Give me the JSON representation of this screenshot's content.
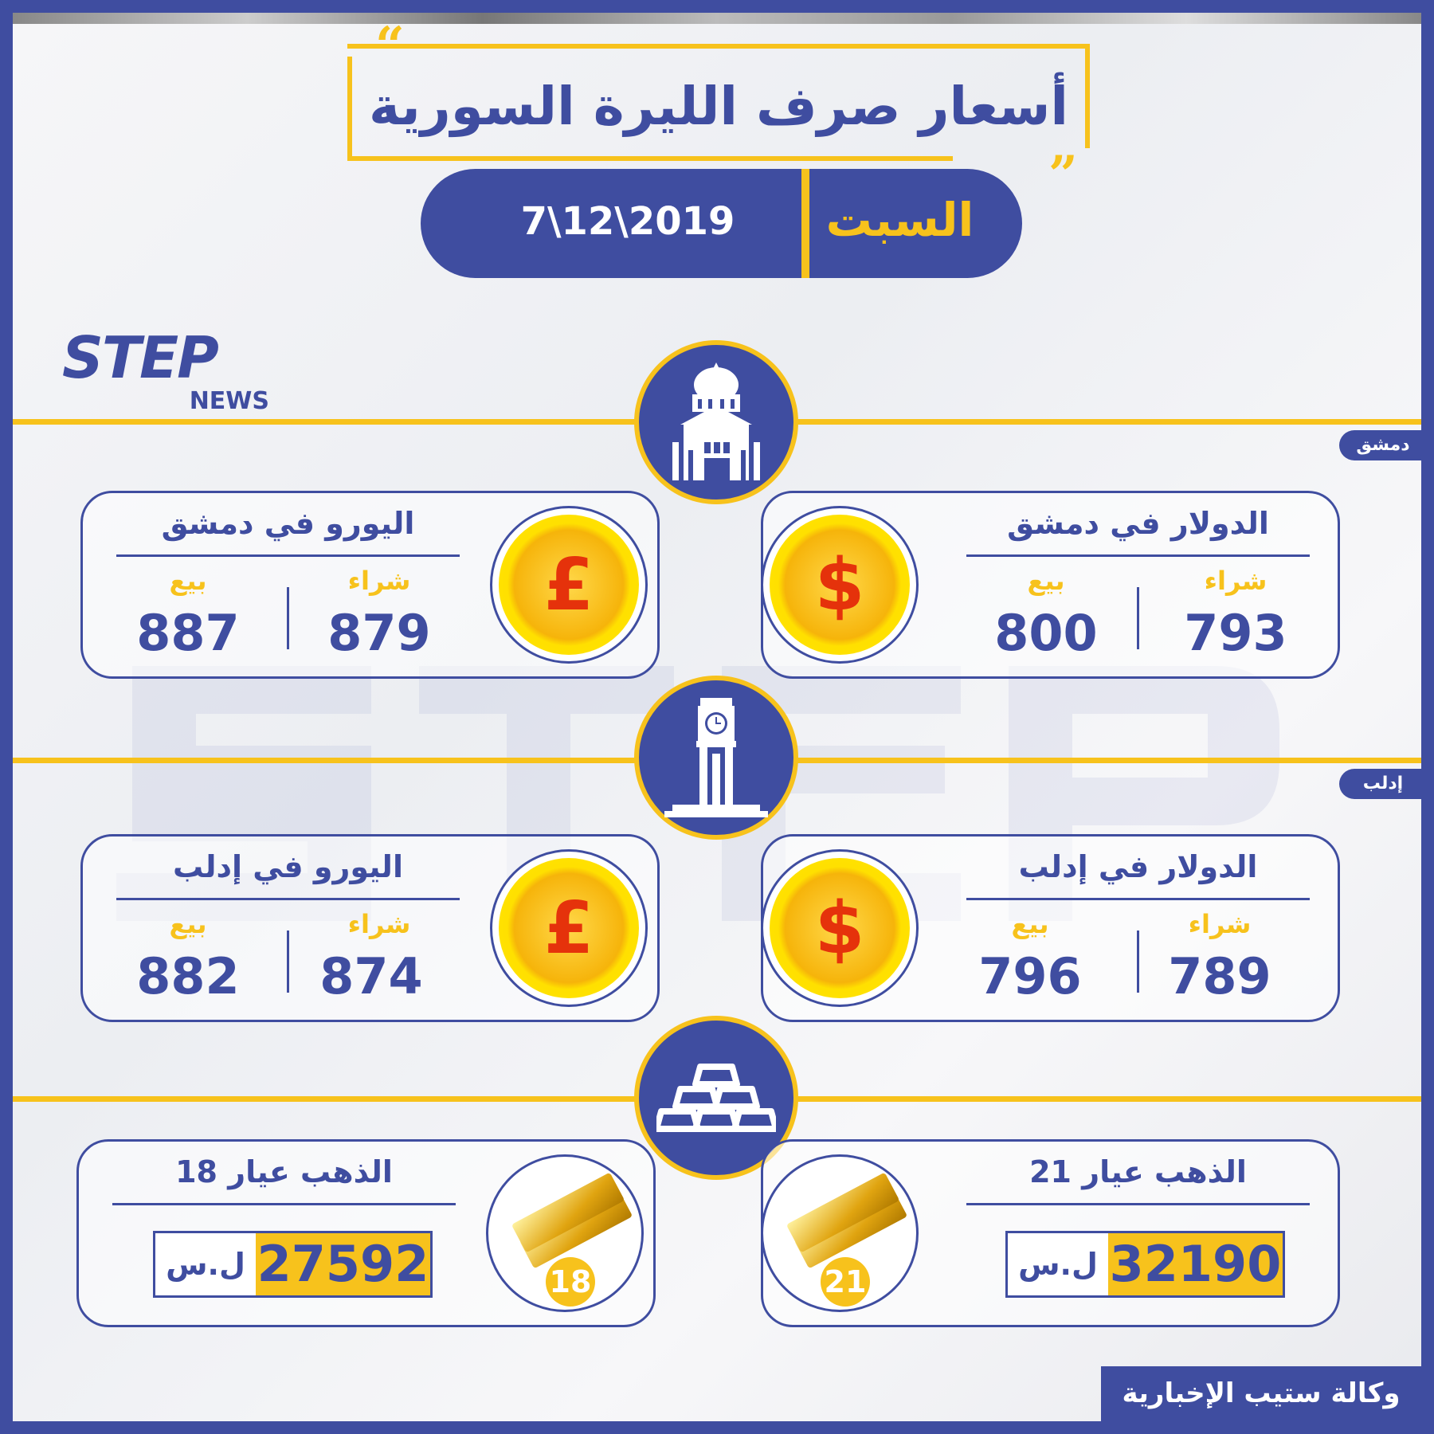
{
  "title": "أسعار صرف الليرة السورية",
  "day": "السبت",
  "date": "7\\12\\2019",
  "logo": {
    "text": "STEP",
    "sub": "NEWS"
  },
  "colors": {
    "primary": "#3f4da0",
    "accent": "#f7c21c",
    "coin_symbol": "#e5320b"
  },
  "labels": {
    "buy": "شراء",
    "sell": "بيع"
  },
  "sections": [
    {
      "tag": "دمشق",
      "icon": "mosque-building-icon",
      "cards": [
        {
          "title": "الدولار في دمشق",
          "icon": "dollar-coin-icon",
          "symbol": "$",
          "buy": "793",
          "sell": "800"
        },
        {
          "title": "اليورو في دمشق",
          "icon": "pound-coin-icon",
          "symbol": "£",
          "buy": "879",
          "sell": "887"
        }
      ]
    },
    {
      "tag": "إدلب",
      "icon": "clock-tower-icon",
      "cards": [
        {
          "title": "الدولار في إدلب",
          "icon": "dollar-coin-icon",
          "symbol": "$",
          "buy": "789",
          "sell": "796"
        },
        {
          "title": "اليورو في إدلب",
          "icon": "pound-coin-icon",
          "symbol": "£",
          "buy": "874",
          "sell": "882"
        }
      ]
    }
  ],
  "gold": {
    "icon": "gold-bars-icon",
    "currency": "ل.س",
    "cards": [
      {
        "title": "الذهب عيار 21",
        "karat": "21",
        "price": "32190"
      },
      {
        "title": "الذهب عيار 18",
        "karat": "18",
        "price": "27592"
      }
    ]
  },
  "footer": "وكالة ستيب الإخبارية"
}
